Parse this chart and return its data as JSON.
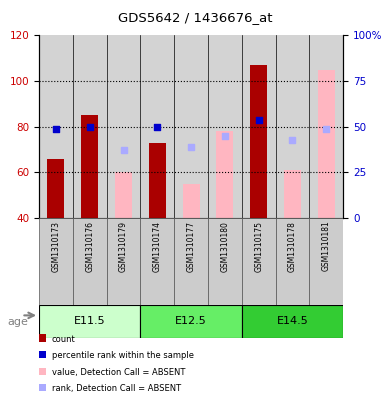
{
  "title": "GDS5642 / 1436676_at",
  "samples": [
    "GSM1310173",
    "GSM1310176",
    "GSM1310179",
    "GSM1310174",
    "GSM1310177",
    "GSM1310180",
    "GSM1310175",
    "GSM1310178",
    "GSM1310181"
  ],
  "groups": [
    {
      "label": "E11.5",
      "indices": [
        0,
        1,
        2
      ],
      "color": "#CCFFCC"
    },
    {
      "label": "E12.5",
      "indices": [
        3,
        4,
        5
      ],
      "color": "#66EE66"
    },
    {
      "label": "E14.5",
      "indices": [
        6,
        7,
        8
      ],
      "color": "#33CC33"
    }
  ],
  "count_values": [
    66,
    85,
    null,
    73,
    null,
    null,
    107,
    null,
    null
  ],
  "rank_values_left": [
    79,
    80,
    null,
    80,
    null,
    null,
    83,
    null,
    null
  ],
  "absent_value": [
    null,
    null,
    60,
    null,
    55,
    78,
    null,
    61,
    105
  ],
  "absent_rank_left": [
    null,
    null,
    70,
    null,
    71,
    76,
    null,
    74,
    79
  ],
  "ylim_left": [
    40,
    120
  ],
  "ylim_right": [
    0,
    100
  ],
  "left_ticks": [
    40,
    60,
    80,
    100,
    120
  ],
  "right_ticks": [
    0,
    25,
    50,
    75,
    100
  ],
  "right_tick_labels": [
    "0",
    "25",
    "50",
    "75",
    "100%"
  ],
  "count_color": "#AA0000",
  "rank_color": "#0000CC",
  "absent_value_color": "#FFB6C1",
  "absent_rank_color": "#AAAAFF",
  "left_label_color": "#CC0000",
  "right_label_color": "#0000CC",
  "bg_color": "#D3D3D3",
  "dotted_lines": [
    60,
    80,
    100
  ],
  "bar_width": 0.5,
  "legend_items": [
    {
      "color": "#AA0000",
      "label": "count"
    },
    {
      "color": "#0000CC",
      "label": "percentile rank within the sample"
    },
    {
      "color": "#FFB6C1",
      "label": "value, Detection Call = ABSENT"
    },
    {
      "color": "#AAAAFF",
      "label": "rank, Detection Call = ABSENT"
    }
  ]
}
